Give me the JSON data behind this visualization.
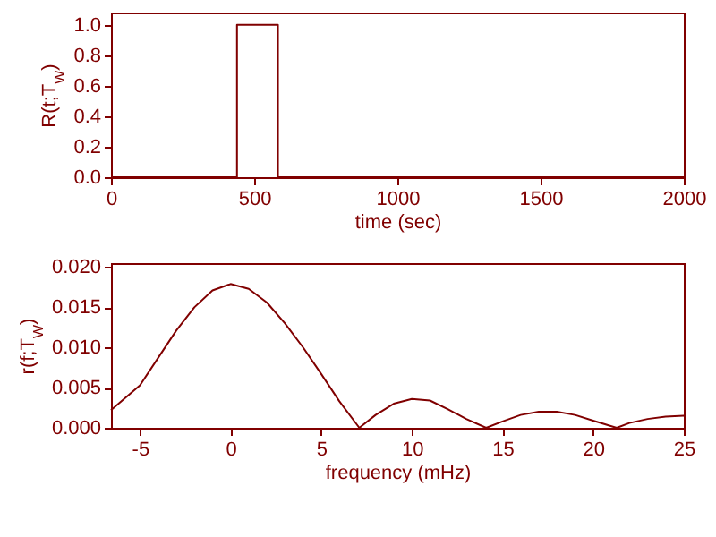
{
  "chart_data": [
    {
      "type": "line",
      "xlabel": "time (sec)",
      "ylabel": "R(t;T$_{W}$)",
      "x": [
        0,
        440,
        440,
        583,
        583,
        2000
      ],
      "series": [
        {
          "color": "#800000",
          "values": [
            0,
            0,
            1,
            1,
            0,
            0
          ]
        }
      ],
      "xlim": [
        0,
        2000
      ],
      "xticks": [
        0,
        500,
        1000,
        1500,
        2000
      ],
      "ylim": [
        0,
        1.08
      ],
      "yticks": [
        {
          "value": 0,
          "label": "0.0"
        },
        0.2,
        0.4,
        0.6,
        0.8,
        {
          "value": 1,
          "label": "1.0"
        }
      ],
      "grid": false,
      "legend": false
    },
    {
      "type": "line",
      "xlabel": "frequency (mHz)",
      "ylabel": "r(f;T$_{W}$)",
      "x": [
        -6.6,
        -5,
        -4,
        -3,
        -2,
        -1,
        0,
        1,
        2,
        3,
        4,
        5,
        6,
        7.1,
        8,
        9,
        10,
        11,
        12,
        13,
        14.1,
        15,
        16,
        17,
        18,
        19,
        20,
        21.3,
        22,
        23,
        24,
        25
      ],
      "series": [
        {
          "color": "#800000",
          "values": [
            0.0022,
            0.0053,
            0.0087,
            0.0121,
            0.015,
            0.0171,
            0.0179,
            0.0173,
            0.0156,
            0.013,
            0.01,
            0.0067,
            0.0033,
            0,
            0.0016,
            0.003,
            0.0036,
            0.0034,
            0.0023,
            0.0011,
            0,
            0.0008,
            0.0016,
            0.002,
            0.002,
            0.0016,
            0.0009,
            0,
            0.0006,
            0.0011,
            0.0014,
            0.0015
          ]
        }
      ],
      "xlim": [
        -6.6,
        25
      ],
      "xticks": [
        -5,
        0,
        5,
        10,
        15,
        20,
        25
      ],
      "ylim": [
        0,
        0.0205
      ],
      "yticks": [
        {
          "value": 0,
          "label": "0.000"
        },
        0.005,
        {
          "value": 0.01,
          "label": "0.010"
        },
        0.015,
        {
          "value": 0.02,
          "label": "0.020"
        }
      ],
      "grid": false,
      "legend": false
    }
  ]
}
